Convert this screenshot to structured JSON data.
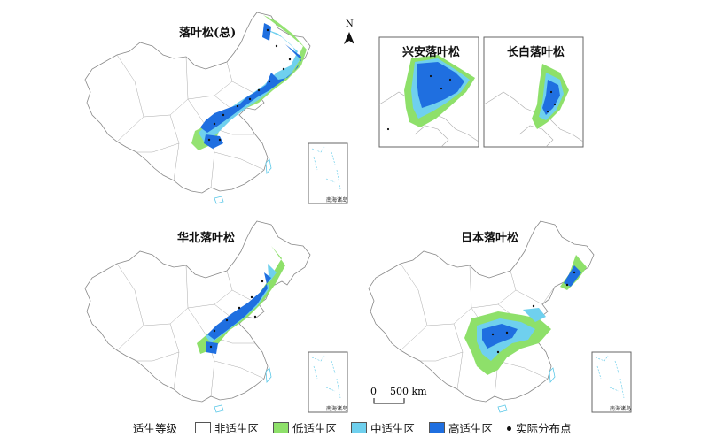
{
  "panels": [
    {
      "id": "total",
      "title": "落叶松(总)"
    },
    {
      "id": "xingan",
      "title": "兴安落叶松"
    },
    {
      "id": "changbai",
      "title": "长白落叶松"
    },
    {
      "id": "huabei",
      "title": "华北落叶松"
    },
    {
      "id": "riben",
      "title": "日本落叶松"
    }
  ],
  "inset_label": "南海诸岛",
  "north_label": "N",
  "scale": {
    "zero": "0",
    "value": "500 km"
  },
  "legend": {
    "title": "适生等级",
    "items": [
      {
        "label": "非适生区",
        "color": "#ffffff"
      },
      {
        "label": "低适生区",
        "color": "#8ee06a"
      },
      {
        "label": "中适生区",
        "color": "#6fd0ee"
      },
      {
        "label": "高适生区",
        "color": "#1f6fe0"
      }
    ],
    "point_label": "实际分布点"
  },
  "colors": {
    "outline": "#888888",
    "inset_border": "#666666",
    "water": "#5bc8e8"
  }
}
